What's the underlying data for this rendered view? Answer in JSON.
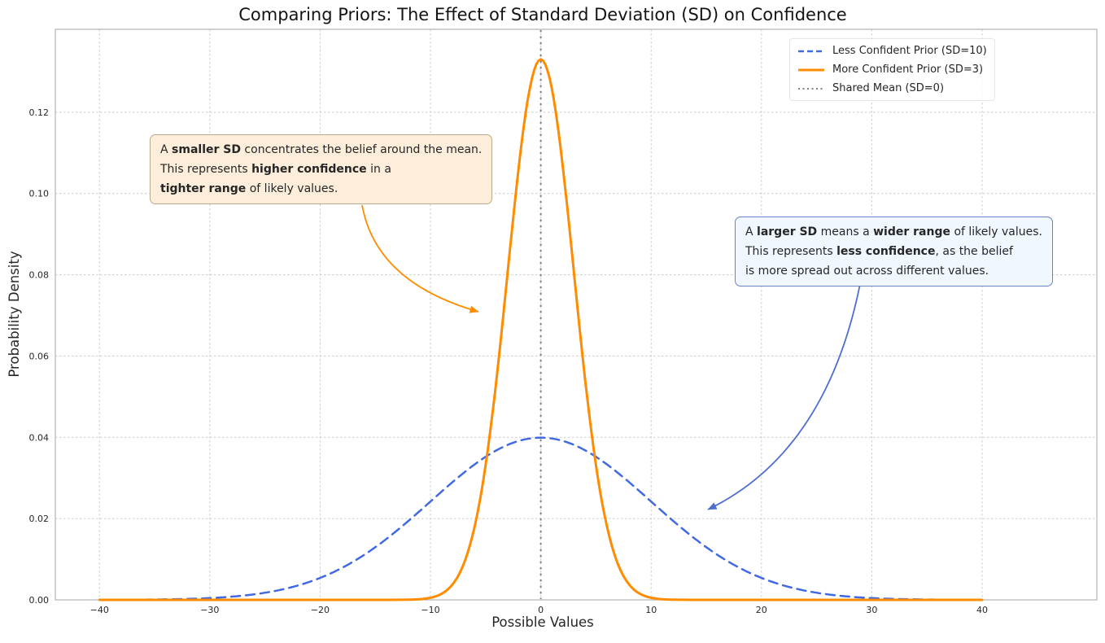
{
  "chart_data": {
    "type": "line",
    "title": "Comparing Priors: The Effect of Standard Deviation (SD) on Confidence",
    "xlabel": "Possible Values",
    "ylabel": "Probability Density",
    "xlim": [
      -44,
      50.4
    ],
    "ylim": [
      0,
      0.1404
    ],
    "x_tick_values": [
      -40,
      -30,
      -20,
      -10,
      0,
      10,
      20,
      30,
      40
    ],
    "x_tick_labels": [
      "−40",
      "−30",
      "−20",
      "−10",
      "0",
      "10",
      "20",
      "30",
      "40"
    ],
    "y_tick_values": [
      0,
      0.02,
      0.04,
      0.06,
      0.08,
      0.1,
      0.12
    ],
    "y_tick_labels": [
      "0.00",
      "0.02",
      "0.04",
      "0.06",
      "0.08",
      "0.10",
      "0.12"
    ],
    "grid": true,
    "legend_position": "upper right",
    "series": [
      {
        "id": "less-confident-prior",
        "name": "Less Confident Prior (SD=10)",
        "kind": "gaussian",
        "mean": 0,
        "sd": 10,
        "peak_density": 0.0399,
        "color": "#4169E1",
        "line_style": "dashed",
        "line_width": 2.5,
        "x_range": [
          -40,
          40
        ]
      },
      {
        "id": "more-confident-prior",
        "name": "More Confident Prior (SD=3)",
        "kind": "gaussian",
        "mean": 0,
        "sd": 3,
        "peak_density": 0.133,
        "color": "#FF8C00",
        "line_style": "solid",
        "line_width": 3,
        "x_range": [
          -40,
          40
        ]
      },
      {
        "id": "shared-mean",
        "name": "Shared Mean (SD=0)",
        "kind": "vline",
        "x": 0,
        "color": "#808080",
        "line_style": "dotted",
        "line_width": 2
      }
    ]
  },
  "annotations": {
    "smaller_sd": {
      "lines": [
        [
          {
            "text": "A "
          },
          {
            "text": "smaller SD",
            "bold": true
          },
          {
            "text": " concentrates the belief around the mean."
          }
        ],
        [
          {
            "text": "This represents "
          },
          {
            "text": "higher confidence",
            "bold": true
          },
          {
            "text": " in a"
          }
        ],
        [
          {
            "text": "tighter range",
            "bold": true
          },
          {
            "text": " of likely values."
          }
        ]
      ],
      "box_color": "#FCEEDA",
      "border_color": "#B9A98C",
      "arrow_color": "#FF8C00"
    },
    "larger_sd": {
      "lines": [
        [
          {
            "text": "A "
          },
          {
            "text": "larger SD",
            "bold": true
          },
          {
            "text": " means a "
          },
          {
            "text": "wider range",
            "bold": true
          },
          {
            "text": " of likely values."
          }
        ],
        [
          {
            "text": "This represents "
          },
          {
            "text": "less confidence",
            "bold": true
          },
          {
            "text": ", as the belief"
          }
        ],
        [
          {
            "text": "is more spread out across different values."
          }
        ]
      ],
      "box_color": "#F0F7FF",
      "border_color": "#6B82C8",
      "arrow_color": "#4F6FD0"
    }
  }
}
